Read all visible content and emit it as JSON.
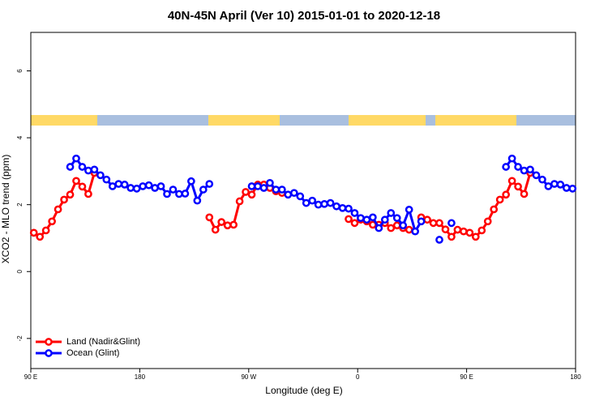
{
  "chart_data": {
    "type": "line",
    "title": "40N-45N April (Ver 10)   2015-01-01 to 2020-12-18",
    "x_label": "Longitude (deg E)",
    "y_label": "XCO2 - MLO trend (ppm)",
    "xlim": [
      90,
      540
    ],
    "ylim": [
      -2.9,
      7.15
    ],
    "xticks": [
      {
        "value": 90,
        "label": "90 E"
      },
      {
        "value": 180,
        "label": "180"
      },
      {
        "value": 270,
        "label": "90 W"
      },
      {
        "value": 360,
        "label": "0"
      },
      {
        "value": 450,
        "label": "90 E"
      },
      {
        "value": 540,
        "label": "180"
      }
    ],
    "yticks": [
      -2,
      0,
      2,
      4,
      6
    ],
    "legend_position": "bottom-left",
    "x": [
      92.5,
      97.5,
      102.5,
      107.5,
      112.5,
      117.5,
      122.5,
      127.5,
      132.5,
      137.5,
      142.5,
      147.5,
      152.5,
      157.5,
      162.5,
      167.5,
      172.5,
      177.5,
      182.5,
      187.5,
      192.5,
      197.5,
      202.5,
      207.5,
      212.5,
      217.5,
      222.5,
      227.5,
      232.5,
      237.5,
      242.5,
      247.5,
      252.5,
      257.5,
      262.5,
      267.5,
      272.5,
      277.5,
      282.5,
      287.5,
      292.5,
      297.5,
      302.5,
      307.5,
      312.5,
      317.5,
      322.5,
      327.5,
      332.5,
      337.5,
      342.5,
      347.5,
      352.5,
      357.5,
      362.5,
      367.5,
      372.5,
      377.5,
      382.5,
      387.5,
      392.5,
      397.5,
      402.5,
      407.5,
      412.5,
      417.5,
      422.5,
      427.5,
      432.5,
      437.5,
      442.5,
      447.5,
      452.5,
      457.5,
      462.5,
      467.5,
      472.5,
      477.5,
      482.5,
      487.5,
      492.5,
      497.5,
      502.5,
      507.5,
      512.5,
      517.5,
      522.5,
      527.5,
      532.5,
      537.5
    ],
    "series": [
      {
        "name": "Land (Nadir&Glint)",
        "color": "#ff0000",
        "values": [
          1.16,
          1.04,
          1.23,
          1.5,
          1.86,
          2.15,
          2.3,
          2.71,
          2.54,
          2.32,
          2.95,
          null,
          null,
          null,
          null,
          null,
          null,
          null,
          null,
          null,
          null,
          null,
          null,
          null,
          null,
          null,
          null,
          null,
          null,
          1.62,
          1.25,
          1.48,
          1.38,
          1.4,
          2.1,
          2.38,
          2.3,
          2.6,
          2.6,
          2.5,
          2.4,
          2.35,
          null,
          null,
          null,
          null,
          null,
          null,
          null,
          null,
          null,
          null,
          1.57,
          1.45,
          1.55,
          1.5,
          1.4,
          1.4,
          1.45,
          1.3,
          1.38,
          1.3,
          1.25,
          null,
          1.62,
          1.55,
          1.45,
          1.45,
          1.26,
          1.04,
          1.25,
          1.2,
          1.16,
          1.04,
          1.23,
          1.5,
          1.86,
          2.15,
          2.3,
          2.71,
          2.54,
          2.32,
          2.95,
          null,
          null,
          null,
          null,
          null,
          null,
          null
        ]
      },
      {
        "name": "Ocean (Glint)",
        "color": "#0000ff",
        "values": [
          null,
          null,
          null,
          null,
          null,
          null,
          3.13,
          3.38,
          3.13,
          3.02,
          3.05,
          2.88,
          2.75,
          2.55,
          2.62,
          2.6,
          2.5,
          2.48,
          2.55,
          2.58,
          2.5,
          2.55,
          2.32,
          2.45,
          2.32,
          2.33,
          2.7,
          2.12,
          2.45,
          2.62,
          null,
          null,
          null,
          null,
          null,
          null,
          2.55,
          2.55,
          2.5,
          2.65,
          2.45,
          2.45,
          2.3,
          2.35,
          2.25,
          2.05,
          2.12,
          2.0,
          2.02,
          2.05,
          1.95,
          1.9,
          1.88,
          1.75,
          1.6,
          1.55,
          1.62,
          1.3,
          1.55,
          1.75,
          1.6,
          1.38,
          1.85,
          1.2,
          1.5,
          null,
          null,
          0.95,
          null,
          1.45,
          null,
          null,
          null,
          null,
          null,
          null,
          null,
          null,
          3.13,
          3.38,
          3.13,
          3.02,
          3.05,
          2.88,
          2.75,
          2.55,
          2.62,
          2.6,
          2.5,
          2.48
        ]
      }
    ]
  }
}
